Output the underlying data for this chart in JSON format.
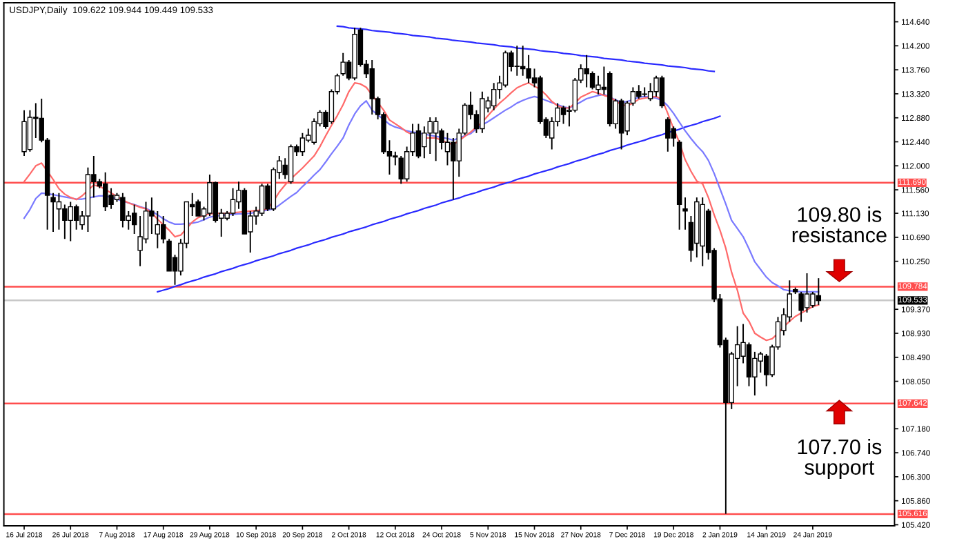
{
  "chart_data": {
    "type": "candlestick",
    "title": "USDJPY,Daily  109.622 109.944 109.449 109.533",
    "color": "#000000",
    "categories": [
      "16 Jul 2018",
      null,
      null,
      null,
      null,
      null,
      null,
      null,
      "26 Jul 2018",
      null,
      null,
      null,
      null,
      null,
      null,
      null,
      "7 Aug 2018",
      null,
      null,
      null,
      null,
      null,
      null,
      null,
      "17 Aug 2018",
      null,
      null,
      null,
      null,
      null,
      null,
      null,
      "29 Aug 2018",
      null,
      null,
      null,
      null,
      null,
      null,
      null,
      "10 Sep 2018",
      null,
      null,
      null,
      null,
      null,
      null,
      null,
      "20 Sep 2018",
      null,
      null,
      null,
      null,
      null,
      null,
      null,
      "2 Oct 2018",
      null,
      null,
      null,
      null,
      null,
      null,
      null,
      "12 Oct 2018",
      null,
      null,
      null,
      null,
      null,
      null,
      null,
      "24 Oct 2018",
      null,
      null,
      null,
      null,
      null,
      null,
      null,
      "5 Nov 2018",
      null,
      null,
      null,
      null,
      null,
      null,
      null,
      "15 Nov 2018",
      null,
      null,
      null,
      null,
      null,
      null,
      null,
      "27 Nov 2018",
      null,
      null,
      null,
      null,
      null,
      null,
      null,
      "7 Dec 2018",
      null,
      null,
      null,
      null,
      null,
      null,
      null,
      "19 Dec 2018",
      null,
      null,
      null,
      null,
      null,
      null,
      null,
      "2 Jan 2019",
      null,
      null,
      null,
      null,
      null,
      null,
      null,
      "14 Jan 2019",
      null,
      null,
      null,
      null,
      null,
      null,
      null,
      "24 Jan 2019",
      null
    ],
    "ohlc": [
      [
        112.26,
        113.02,
        112.18,
        112.81
      ],
      [
        112.3,
        113.02,
        112.26,
        112.89
      ],
      [
        112.87,
        113.15,
        112.51,
        112.89
      ],
      [
        112.87,
        113.23,
        112.43,
        112.47
      ],
      [
        112.47,
        112.51,
        110.83,
        111.46
      ],
      [
        111.42,
        111.5,
        110.79,
        111.34
      ],
      [
        111.21,
        111.5,
        110.83,
        111.34
      ],
      [
        111.21,
        111.29,
        110.66,
        111.0
      ],
      [
        111.0,
        111.34,
        110.62,
        111.25
      ],
      [
        111.25,
        111.29,
        110.83,
        111.0
      ],
      [
        110.92,
        111.17,
        110.83,
        111.08
      ],
      [
        111.08,
        111.97,
        110.79,
        111.84
      ],
      [
        111.84,
        112.18,
        111.42,
        111.71
      ],
      [
        111.71,
        111.76,
        111.59,
        111.63
      ],
      [
        111.67,
        111.88,
        111.17,
        111.25
      ],
      [
        111.46,
        111.59,
        111.21,
        111.29
      ],
      [
        111.38,
        111.5,
        111.34,
        111.46
      ],
      [
        111.42,
        111.5,
        110.87,
        111.0
      ],
      [
        111.0,
        111.17,
        110.83,
        111.08
      ],
      [
        111.13,
        111.29,
        110.75,
        110.92
      ],
      [
        110.45,
        111.08,
        110.16,
        110.7
      ],
      [
        110.66,
        111.34,
        110.58,
        111.17
      ],
      [
        111.17,
        111.42,
        110.75,
        111.08
      ],
      [
        110.75,
        111.17,
        110.49,
        110.92
      ],
      [
        110.92,
        111.08,
        110.58,
        110.66
      ],
      [
        110.62,
        110.66,
        110.07,
        110.07
      ],
      [
        110.32,
        110.37,
        109.82,
        110.07
      ],
      [
        110.07,
        110.66,
        109.99,
        110.58
      ],
      [
        110.58,
        111.34,
        110.49,
        111.34
      ],
      [
        111.29,
        111.5,
        111.08,
        111.25
      ],
      [
        111.34,
        111.38,
        111.08,
        111.08
      ],
      [
        111.08,
        111.25,
        111.0,
        111.21
      ],
      [
        111.13,
        111.84,
        111.08,
        111.69
      ],
      [
        111.69,
        111.71,
        110.96,
        111.0
      ],
      [
        111.04,
        111.21,
        110.7,
        111.13
      ],
      [
        111.04,
        111.17,
        111.0,
        111.13
      ],
      [
        111.13,
        111.59,
        111.08,
        111.38
      ],
      [
        111.34,
        111.71,
        111.21,
        111.55
      ],
      [
        111.55,
        111.59,
        110.75,
        110.75
      ],
      [
        110.79,
        111.17,
        110.41,
        111.08
      ],
      [
        111.08,
        111.25,
        110.92,
        111.17
      ],
      [
        111.13,
        111.67,
        111.08,
        111.63
      ],
      [
        111.63,
        111.67,
        111.17,
        111.21
      ],
      [
        111.21,
        111.97,
        111.17,
        111.93
      ],
      [
        111.88,
        112.18,
        111.76,
        112.09
      ],
      [
        112.01,
        112.14,
        111.76,
        111.84
      ],
      [
        111.71,
        112.39,
        111.67,
        112.35
      ],
      [
        112.35,
        112.39,
        112.18,
        112.26
      ],
      [
        112.26,
        112.6,
        112.18,
        112.51
      ],
      [
        112.47,
        112.68,
        112.43,
        112.56
      ],
      [
        112.43,
        112.87,
        112.39,
        112.81
      ],
      [
        112.77,
        113.02,
        112.72,
        112.98
      ],
      [
        112.98,
        113.02,
        112.68,
        112.72
      ],
      [
        112.81,
        113.4,
        112.77,
        113.36
      ],
      [
        113.36,
        113.69,
        113.31,
        113.65
      ],
      [
        113.69,
        114.07,
        113.65,
        113.9
      ],
      [
        113.9,
        113.94,
        113.57,
        113.61
      ],
      [
        113.61,
        114.53,
        113.57,
        114.41
      ],
      [
        114.49,
        114.53,
        113.82,
        113.86
      ],
      [
        113.86,
        113.94,
        113.61,
        113.69
      ],
      [
        113.78,
        113.94,
        112.94,
        113.23
      ],
      [
        113.23,
        113.27,
        112.85,
        112.94
      ],
      [
        112.94,
        112.98,
        112.22,
        112.26
      ],
      [
        112.26,
        112.47,
        111.84,
        112.18
      ],
      [
        112.18,
        112.26,
        112.01,
        112.16
      ],
      [
        112.14,
        112.18,
        111.67,
        111.76
      ],
      [
        111.76,
        112.35,
        111.71,
        112.26
      ],
      [
        112.26,
        112.77,
        112.18,
        112.6
      ],
      [
        112.64,
        112.77,
        112.14,
        112.18
      ],
      [
        112.35,
        112.72,
        112.14,
        112.6
      ],
      [
        112.6,
        112.89,
        112.22,
        112.81
      ],
      [
        112.6,
        112.89,
        112.09,
        112.81
      ],
      [
        112.64,
        112.68,
        112.3,
        112.43
      ],
      [
        112.26,
        112.6,
        112.01,
        112.43
      ],
      [
        112.43,
        112.51,
        111.38,
        112.09
      ],
      [
        112.09,
        112.68,
        111.8,
        112.6
      ],
      [
        112.6,
        113.15,
        112.56,
        113.11
      ],
      [
        113.11,
        113.36,
        112.85,
        112.94
      ],
      [
        112.94,
        113.02,
        112.6,
        112.68
      ],
      [
        112.68,
        113.36,
        112.6,
        113.23
      ],
      [
        113.06,
        113.27,
        112.98,
        113.19
      ],
      [
        113.1,
        113.52,
        113.02,
        113.4
      ],
      [
        113.4,
        113.65,
        113.23,
        113.52
      ],
      [
        113.48,
        114.11,
        113.44,
        114.07
      ],
      [
        114.07,
        114.11,
        113.73,
        113.82
      ],
      [
        113.82,
        114.2,
        113.65,
        113.82
      ],
      [
        113.82,
        114.2,
        113.65,
        113.78
      ],
      [
        113.78,
        114.03,
        113.52,
        113.61
      ],
      [
        113.61,
        113.78,
        113.44,
        113.52
      ],
      [
        113.61,
        113.65,
        112.77,
        112.81
      ],
      [
        112.85,
        112.89,
        112.51,
        112.56
      ],
      [
        112.51,
        112.89,
        112.3,
        112.81
      ],
      [
        112.81,
        113.15,
        112.72,
        113.06
      ],
      [
        113.06,
        113.1,
        112.77,
        112.94
      ],
      [
        113.0,
        113.1,
        112.72,
        113.02
      ],
      [
        113.02,
        113.61,
        112.98,
        113.57
      ],
      [
        113.57,
        113.86,
        113.52,
        113.78
      ],
      [
        113.78,
        114.03,
        113.44,
        113.69
      ],
      [
        113.69,
        113.73,
        113.4,
        113.44
      ],
      [
        113.4,
        113.65,
        113.31,
        113.48
      ],
      [
        113.44,
        113.82,
        113.31,
        113.4
      ],
      [
        113.69,
        113.73,
        112.72,
        112.77
      ],
      [
        112.77,
        113.23,
        112.68,
        113.19
      ],
      [
        113.19,
        113.23,
        112.3,
        112.6
      ],
      [
        112.64,
        113.19,
        112.56,
        113.15
      ],
      [
        113.15,
        113.44,
        113.1,
        113.36
      ],
      [
        113.36,
        113.48,
        113.23,
        113.27
      ],
      [
        113.31,
        113.44,
        113.27,
        113.31
      ],
      [
        113.23,
        113.52,
        113.19,
        113.36
      ],
      [
        113.36,
        113.65,
        113.27,
        113.61
      ],
      [
        113.61,
        113.65,
        113.06,
        113.1
      ],
      [
        112.85,
        112.89,
        112.26,
        112.51
      ],
      [
        112.68,
        112.72,
        112.35,
        112.51
      ],
      [
        112.43,
        112.47,
        110.83,
        111.29
      ],
      [
        111.21,
        111.42,
        110.83,
        111.17
      ],
      [
        110.96,
        111.08,
        110.24,
        110.45
      ],
      [
        110.58,
        111.42,
        110.32,
        111.34
      ],
      [
        110.53,
        111.42,
        110.16,
        111.29
      ],
      [
        111.17,
        111.21,
        110.28,
        110.41
      ],
      [
        110.45,
        110.49,
        109.5,
        109.56
      ],
      [
        109.56,
        109.65,
        108.67,
        108.72
      ],
      [
        108.8,
        108.85,
        105.62,
        107.66
      ],
      [
        107.66,
        108.59,
        107.54,
        108.55
      ],
      [
        108.47,
        109.06,
        107.96,
        108.72
      ],
      [
        108.51,
        109.1,
        108.38,
        108.76
      ],
      [
        108.72,
        108.76,
        107.96,
        108.13
      ],
      [
        108.13,
        108.59,
        107.79,
        108.47
      ],
      [
        108.42,
        108.59,
        108.21,
        108.55
      ],
      [
        108.51,
        108.55,
        107.96,
        108.17
      ],
      [
        108.17,
        108.72,
        108.13,
        108.68
      ],
      [
        108.68,
        109.23,
        108.63,
        109.14
      ],
      [
        108.98,
        109.39,
        108.89,
        109.27
      ],
      [
        109.23,
        109.9,
        109.14,
        109.65
      ],
      [
        109.73,
        109.77,
        109.65,
        109.69
      ],
      [
        109.65,
        109.69,
        109.14,
        109.35
      ],
      [
        109.4,
        110.03,
        109.31,
        109.65
      ],
      [
        109.44,
        109.69,
        109.4,
        109.65
      ],
      [
        109.62,
        109.94,
        109.45,
        109.53
      ]
    ],
    "series": [
      {
        "type": "line",
        "color": "#ff6a6a",
        "values": [
          111.71,
          111.85,
          112.0,
          112.05,
          111.9,
          111.75,
          111.58,
          111.48,
          111.42,
          111.38,
          111.45,
          111.55,
          111.65,
          111.62,
          111.57,
          111.5,
          111.44,
          111.37,
          111.32,
          111.28,
          111.24,
          111.21,
          111.14,
          111.02,
          110.92,
          110.82,
          110.7,
          110.73,
          110.85,
          110.97,
          111.05,
          111.09,
          111.12,
          111.13,
          111.13,
          111.13,
          111.14,
          111.15,
          111.16,
          111.17,
          111.18,
          111.19,
          111.21,
          111.35,
          111.52,
          111.65,
          111.76,
          111.86,
          111.96,
          112.07,
          112.18,
          112.35,
          112.55,
          112.74,
          112.92,
          113.12,
          113.36,
          113.52,
          113.5,
          113.44,
          113.3,
          113.16,
          113.02,
          112.84,
          112.77,
          112.7,
          112.62,
          112.57,
          null,
          112.51,
          112.51,
          112.51,
          112.47,
          112.42,
          112.39,
          112.46,
          112.54,
          112.62,
          112.71,
          112.8,
          112.92,
          113.04,
          113.15,
          113.24,
          113.34,
          113.43,
          113.48,
          113.52,
          113.46,
          113.4,
          113.3,
          113.18,
          113.1,
          113.06,
          113.06,
          113.15,
          113.26,
          113.31,
          113.36,
          113.33,
          113.29,
          113.26,
          113.19,
          113.12,
          113.1,
          113.15,
          113.22,
          113.24,
          113.26,
          113.27,
          113.22,
          112.96,
          112.68,
          112.43,
          112.11,
          111.9,
          111.72,
          111.67,
          111.42,
          111.1,
          110.82,
          110.49,
          110.05,
          109.72,
          109.3,
          109.15,
          108.93,
          108.86,
          108.8,
          108.83,
          108.93,
          109.05,
          109.15,
          109.24,
          109.3,
          109.36,
          109.42,
          109.45
        ]
      },
      {
        "type": "line",
        "color": "#7a7aff",
        "values": [
          111.04,
          111.2,
          111.4,
          111.5,
          111.49,
          111.47,
          111.45,
          111.43,
          111.41,
          111.39,
          111.39,
          111.41,
          111.43,
          111.45,
          111.45,
          111.42,
          111.39,
          111.35,
          111.32,
          111.29,
          111.25,
          111.22,
          111.17,
          111.1,
          111.03,
          110.97,
          110.93,
          110.93,
          110.94,
          110.95,
          110.97,
          111.01,
          111.06,
          111.08,
          111.09,
          111.1,
          111.11,
          111.12,
          111.12,
          111.13,
          111.15,
          111.17,
          111.19,
          111.21,
          111.28,
          111.36,
          111.44,
          111.51,
          111.62,
          111.72,
          111.83,
          111.93,
          112.07,
          112.22,
          112.36,
          112.51,
          112.75,
          112.95,
          113.1,
          113.19,
          113.02,
          112.93,
          112.85,
          112.76,
          112.71,
          112.68,
          112.64,
          112.62,
          112.6,
          112.58,
          112.56,
          112.54,
          112.52,
          112.5,
          112.47,
          112.51,
          112.55,
          112.59,
          112.68,
          112.75,
          112.81,
          112.88,
          112.95,
          113.02,
          113.08,
          113.15,
          113.2,
          113.24,
          113.27,
          113.24,
          113.2,
          113.16,
          113.12,
          113.08,
          113.06,
          113.11,
          113.17,
          113.23,
          113.26,
          113.29,
          113.31,
          113.26,
          113.21,
          113.16,
          113.18,
          113.21,
          113.26,
          113.27,
          113.26,
          113.24,
          113.2,
          113.1,
          112.96,
          112.8,
          112.64,
          112.5,
          112.37,
          112.26,
          112.1,
          111.86,
          111.58,
          111.3,
          111.0,
          110.85,
          110.7,
          110.48,
          110.24,
          110.1,
          109.96,
          109.86,
          109.8,
          109.73,
          109.71,
          109.7,
          109.69,
          109.69,
          109.69,
          109.69
        ]
      },
      {
        "type": "line",
        "color": "#2a2aff",
        "values": [
          null,
          null,
          null,
          null,
          null,
          null,
          null,
          null,
          null,
          null,
          null,
          null,
          null,
          null,
          null,
          null,
          null,
          null,
          null,
          null,
          null,
          null,
          null,
          null,
          null,
          null,
          null,
          null,
          null,
          null,
          null,
          null,
          null,
          null,
          null,
          null,
          null,
          null,
          null,
          null,
          null,
          null,
          null,
          null,
          null,
          null,
          null,
          null,
          null,
          null,
          null,
          null,
          null,
          null,
          114.56,
          114.55,
          114.53,
          114.52,
          114.51,
          114.5,
          114.48,
          114.47,
          114.46,
          114.45,
          114.43,
          114.42,
          114.41,
          114.39,
          114.38,
          114.37,
          114.36,
          114.34,
          114.33,
          114.32,
          114.3,
          114.29,
          114.28,
          114.27,
          114.25,
          114.24,
          114.23,
          114.22,
          114.2,
          114.19,
          114.18,
          114.16,
          114.15,
          114.14,
          114.13,
          114.11,
          114.1,
          114.09,
          114.08,
          114.06,
          114.05,
          114.04,
          114.02,
          114.01,
          114.0,
          113.99,
          113.97,
          113.96,
          113.95,
          113.94,
          113.92,
          113.91,
          113.9,
          113.88,
          113.87,
          113.86,
          113.85,
          113.83,
          113.82,
          113.81,
          113.8,
          113.78,
          113.77,
          113.76,
          113.74,
          113.73,
          null,
          null,
          null,
          null,
          null,
          null,
          null,
          null,
          null,
          null,
          null,
          null,
          null,
          null,
          null,
          null,
          null,
          null
        ]
      },
      {
        "type": "line",
        "color": "#2a2aff",
        "values": [
          null,
          null,
          null,
          null,
          null,
          null,
          null,
          null,
          null,
          null,
          null,
          null,
          null,
          null,
          null,
          null,
          null,
          null,
          null,
          null,
          null,
          null,
          null,
          109.69,
          109.72,
          109.75,
          109.79,
          109.82,
          109.86,
          109.89,
          109.92,
          109.96,
          109.99,
          110.02,
          110.06,
          110.09,
          110.12,
          110.16,
          110.19,
          110.22,
          110.26,
          110.29,
          110.32,
          110.35,
          110.39,
          110.42,
          110.45,
          110.49,
          110.52,
          110.55,
          110.59,
          110.62,
          110.65,
          110.69,
          110.72,
          110.75,
          110.79,
          110.82,
          110.85,
          110.88,
          110.92,
          110.95,
          110.98,
          111.02,
          111.05,
          111.08,
          111.12,
          111.15,
          111.18,
          111.22,
          111.25,
          111.28,
          111.32,
          111.35,
          111.38,
          111.41,
          111.45,
          111.48,
          111.51,
          111.55,
          111.58,
          111.61,
          111.65,
          111.68,
          111.71,
          111.75,
          111.78,
          111.81,
          111.85,
          111.88,
          111.91,
          111.94,
          111.98,
          112.01,
          112.04,
          112.08,
          112.11,
          112.14,
          112.18,
          112.21,
          112.24,
          112.28,
          112.31,
          112.34,
          112.38,
          112.41,
          112.44,
          112.47,
          112.51,
          112.54,
          112.57,
          112.61,
          112.64,
          112.67,
          112.71,
          112.74,
          112.77,
          112.81,
          112.84,
          112.87,
          112.91,
          null,
          null,
          null,
          null,
          null,
          null,
          null,
          null,
          null,
          null,
          null,
          null,
          null,
          null,
          null,
          null,
          null
        ]
      }
    ],
    "ylim": [
      105.4,
      114.99
    ],
    "yticks": [
      {
        "value": 114.64,
        "label": "114.640"
      },
      {
        "value": 114.2,
        "label": "114.200"
      },
      {
        "value": 113.76,
        "label": "113.760"
      },
      {
        "value": 113.32,
        "label": "113.320"
      },
      {
        "value": 112.88,
        "label": "112.880"
      },
      {
        "value": 112.44,
        "label": "112.440"
      },
      {
        "value": 112.0,
        "label": "112.000"
      },
      {
        "value": 111.56,
        "label": "111.560"
      },
      {
        "value": 111.13,
        "label": "111.130"
      },
      {
        "value": 110.69,
        "label": "110.690"
      },
      {
        "value": 110.25,
        "label": "110.250"
      },
      {
        "value": 109.37,
        "label": "109.370"
      },
      {
        "value": 108.93,
        "label": "108.930"
      },
      {
        "value": 108.49,
        "label": "108.490"
      },
      {
        "value": 108.05,
        "label": "108.050"
      },
      {
        "value": 107.18,
        "label": "107.180"
      },
      {
        "value": 106.74,
        "label": "106.740"
      },
      {
        "value": 106.3,
        "label": "106.300"
      },
      {
        "value": 105.86,
        "label": "105.860"
      },
      {
        "value": 105.42,
        "label": "105.420"
      }
    ],
    "ref_lines": [
      {
        "axis": "y",
        "value": 111.69,
        "label": "111.690",
        "color": "#ff4d4d"
      },
      {
        "axis": "y",
        "value": 109.784,
        "label": "109.784",
        "color": "#ff4d4d"
      },
      {
        "axis": "y",
        "value": 109.533,
        "label": "109.533",
        "color": "#c8c8c8"
      },
      {
        "axis": "y",
        "value": 107.642,
        "label": "107.642",
        "color": "#ff4d4d"
      },
      {
        "axis": "y",
        "value": 105.616,
        "label": "105.616",
        "color": "#ff4d4d"
      }
    ],
    "annotations": [
      "109.80 is\nresistance",
      "107.70 is\nsupport"
    ]
  }
}
